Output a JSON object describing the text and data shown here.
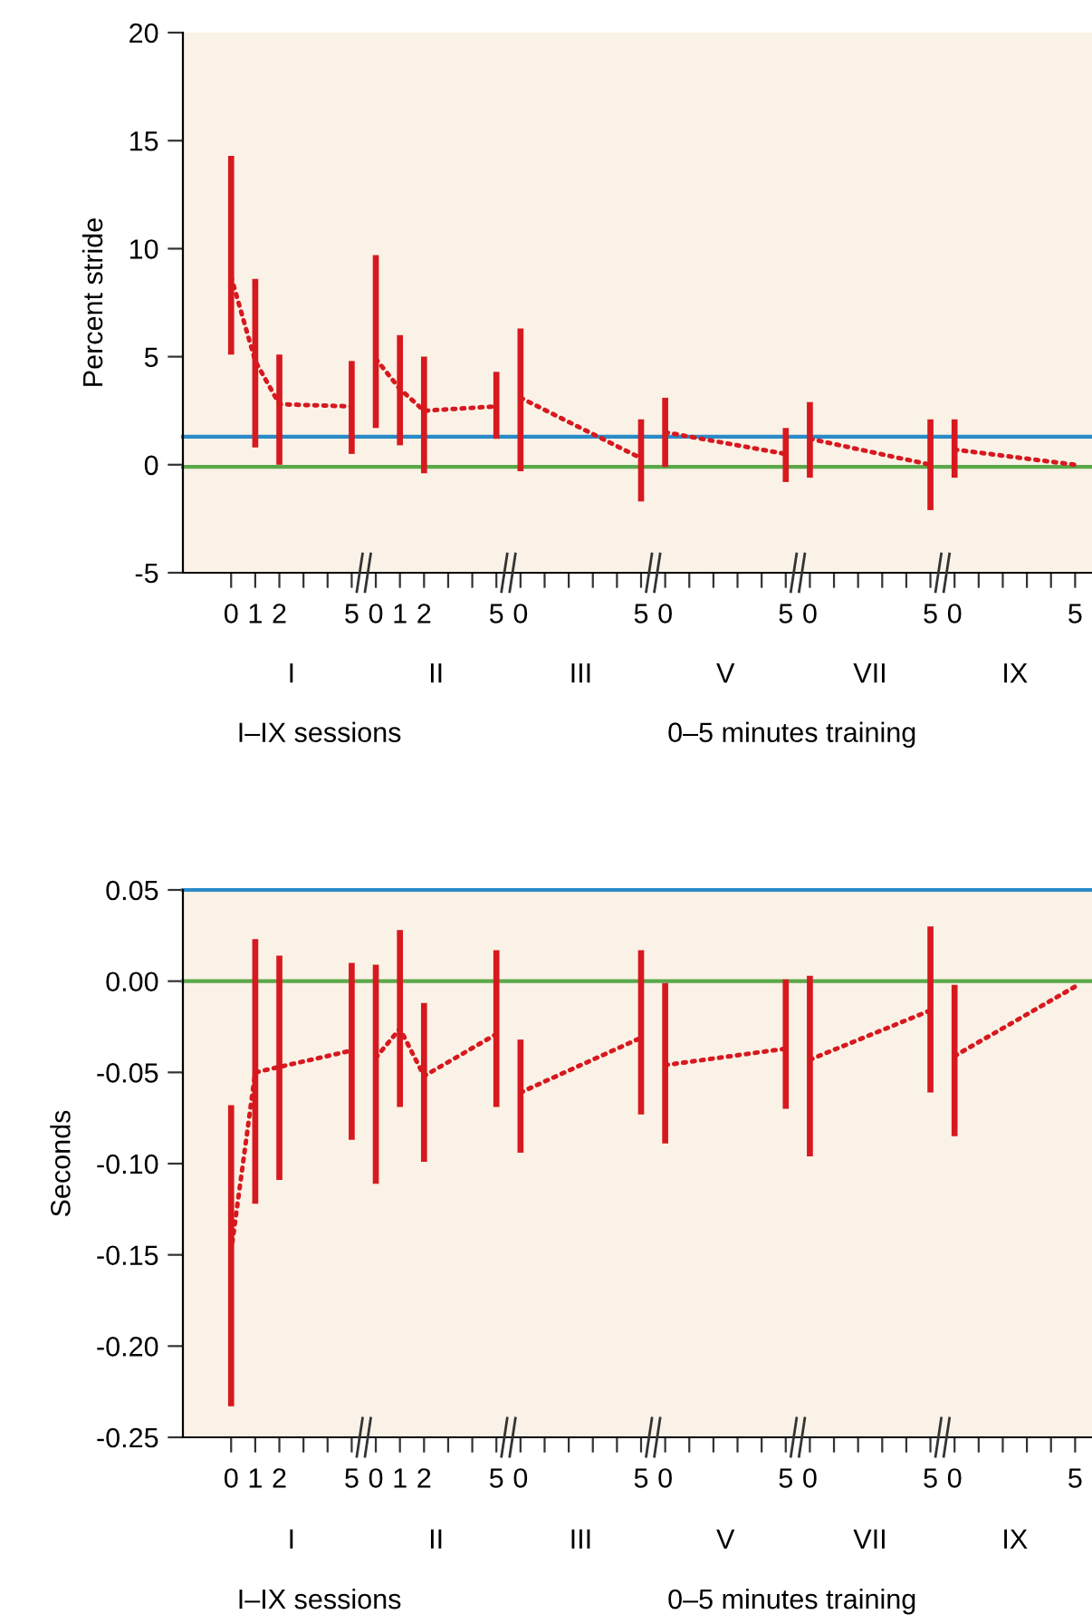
{
  "chart_data": [
    {
      "type": "line",
      "ylabel": "Percent stride",
      "xlabel": "I–IX sessions",
      "annotations": [
        "I",
        "II",
        "III",
        "V",
        "VII",
        "IX",
        "0–5 minutes training"
      ],
      "categories": [
        "0",
        "1",
        "2",
        null,
        null,
        "5",
        "0",
        "1",
        "2",
        null,
        null,
        "5",
        "0",
        null,
        null,
        null,
        null,
        "5",
        "0",
        null,
        null,
        null,
        null,
        "5",
        "0",
        null,
        null,
        null,
        null,
        "5",
        "0",
        null,
        null,
        null,
        null,
        "5"
      ],
      "ylim": [
        -5,
        20
      ],
      "yticks": [
        20,
        15,
        10,
        5,
        0,
        -5
      ],
      "line_style": "dotted",
      "marker": "none",
      "grid": false,
      "legend": false,
      "ref_lines": [
        {
          "axis": "y",
          "value": 1.3,
          "label": null,
          "color": "#2a8ac8"
        },
        {
          "axis": "y",
          "value": -0.1,
          "label": null,
          "color": "#5aa84a"
        }
      ],
      "series": [
        {
          "color": "#d7191f",
          "values": [
            8.7,
            4.8,
            2.8,
            null,
            null,
            2.7,
            null,
            null,
            null,
            null,
            null,
            null,
            null,
            null,
            null,
            null,
            null,
            null,
            null,
            null,
            null,
            null,
            null,
            null,
            null,
            null,
            null,
            null,
            null,
            null,
            null,
            null,
            null,
            null,
            null,
            null
          ],
          "errors": [
            [
              5.1,
              14.3
            ],
            [
              0.8,
              8.6
            ],
            [
              0.0,
              5.1
            ],
            null,
            null,
            [
              0.5,
              4.8
            ],
            null,
            null,
            null,
            null,
            null,
            null,
            null,
            null,
            null,
            null,
            null,
            null,
            null,
            null,
            null,
            null,
            null,
            null,
            null,
            null,
            null,
            null,
            null,
            null,
            null,
            null,
            null,
            null,
            null,
            null
          ]
        },
        {
          "color": "#d7191f",
          "values": [
            null,
            null,
            null,
            null,
            null,
            null,
            4.9,
            3.5,
            2.5,
            null,
            null,
            2.7,
            null,
            null,
            null,
            null,
            null,
            null,
            null,
            null,
            null,
            null,
            null,
            null,
            null,
            null,
            null,
            null,
            null,
            null,
            null,
            null,
            null,
            null,
            null,
            null
          ],
          "errors": [
            null,
            null,
            null,
            null,
            null,
            null,
            [
              1.7,
              9.7
            ],
            [
              0.9,
              6.0
            ],
            [
              -0.4,
              5.0
            ],
            null,
            null,
            [
              1.2,
              4.3
            ],
            null,
            null,
            null,
            null,
            null,
            null,
            null,
            null,
            null,
            null,
            null,
            null,
            null,
            null,
            null,
            null,
            null,
            null,
            null,
            null,
            null,
            null,
            null,
            null
          ]
        },
        {
          "color": "#d7191f",
          "values": [
            null,
            null,
            null,
            null,
            null,
            null,
            null,
            null,
            null,
            null,
            null,
            null,
            3.1,
            null,
            null,
            null,
            null,
            0.3,
            null,
            null,
            null,
            null,
            null,
            null,
            null,
            null,
            null,
            null,
            null,
            null,
            null,
            null,
            null,
            null,
            null,
            null
          ],
          "errors": [
            null,
            null,
            null,
            null,
            null,
            null,
            null,
            null,
            null,
            null,
            null,
            null,
            [
              -0.3,
              6.3
            ],
            null,
            null,
            null,
            null,
            [
              -1.7,
              2.1
            ],
            null,
            null,
            null,
            null,
            null,
            null,
            null,
            null,
            null,
            null,
            null,
            null,
            null,
            null,
            null,
            null,
            null,
            null
          ]
        },
        {
          "color": "#d7191f",
          "values": [
            null,
            null,
            null,
            null,
            null,
            null,
            null,
            null,
            null,
            null,
            null,
            null,
            null,
            null,
            null,
            null,
            null,
            null,
            1.5,
            null,
            null,
            null,
            null,
            0.5,
            null,
            null,
            null,
            null,
            null,
            null,
            null,
            null,
            null,
            null,
            null,
            null
          ],
          "errors": [
            null,
            null,
            null,
            null,
            null,
            null,
            null,
            null,
            null,
            null,
            null,
            null,
            null,
            null,
            null,
            null,
            null,
            null,
            [
              -0.1,
              3.1
            ],
            null,
            null,
            null,
            null,
            [
              -0.8,
              1.7
            ],
            null,
            null,
            null,
            null,
            null,
            null,
            null,
            null,
            null,
            null,
            null,
            null
          ]
        },
        {
          "color": "#d7191f",
          "values": [
            null,
            null,
            null,
            null,
            null,
            null,
            null,
            null,
            null,
            null,
            null,
            null,
            null,
            null,
            null,
            null,
            null,
            null,
            null,
            null,
            null,
            null,
            null,
            null,
            1.2,
            null,
            null,
            null,
            null,
            0.0,
            null,
            null,
            null,
            null,
            null,
            null
          ],
          "errors": [
            null,
            null,
            null,
            null,
            null,
            null,
            null,
            null,
            null,
            null,
            null,
            null,
            null,
            null,
            null,
            null,
            null,
            null,
            null,
            null,
            null,
            null,
            null,
            null,
            [
              -0.6,
              2.9
            ],
            null,
            null,
            null,
            null,
            [
              -2.1,
              2.1
            ],
            null,
            null,
            null,
            null,
            null,
            null
          ]
        },
        {
          "color": "#d7191f",
          "values": [
            null,
            null,
            null,
            null,
            null,
            null,
            null,
            null,
            null,
            null,
            null,
            null,
            null,
            null,
            null,
            null,
            null,
            null,
            null,
            null,
            null,
            null,
            null,
            null,
            null,
            null,
            null,
            null,
            null,
            null,
            0.7,
            null,
            null,
            null,
            null,
            0.0
          ],
          "errors": [
            null,
            null,
            null,
            null,
            null,
            null,
            null,
            null,
            null,
            null,
            null,
            null,
            null,
            null,
            null,
            null,
            null,
            null,
            null,
            null,
            null,
            null,
            null,
            null,
            null,
            null,
            null,
            null,
            null,
            null,
            [
              -0.6,
              2.1
            ],
            null,
            null,
            null,
            null,
            null
          ]
        }
      ]
    },
    {
      "type": "line",
      "ylabel": "Seconds",
      "xlabel": "I–IX sessions",
      "annotations": [
        "I",
        "II",
        "III",
        "V",
        "VII",
        "IX",
        "0–5 minutes training"
      ],
      "categories": [
        "0",
        "1",
        "2",
        null,
        null,
        "5",
        "0",
        "1",
        "2",
        null,
        null,
        "5",
        "0",
        null,
        null,
        null,
        null,
        "5",
        "0",
        null,
        null,
        null,
        null,
        "5",
        "0",
        null,
        null,
        null,
        null,
        "5",
        "0",
        null,
        null,
        null,
        null,
        "5"
      ],
      "ylim": [
        -0.25,
        0.05
      ],
      "yticks": [
        {
          "value": 0.05,
          "label": "0.05"
        },
        {
          "value": 0,
          "label": "0.00"
        },
        {
          "value": -0.05,
          "label": "-0.05"
        },
        {
          "value": -0.1,
          "label": "-0.10"
        },
        {
          "value": -0.15,
          "label": "-0.15"
        },
        {
          "value": -0.2,
          "label": "-0.20"
        },
        {
          "value": -0.25,
          "label": "-0.25"
        }
      ],
      "line_style": "dotted",
      "marker": "none",
      "grid": false,
      "legend": false,
      "ref_lines": [
        {
          "axis": "y",
          "value": 0.05,
          "label": null,
          "color": "#2a8ac8"
        },
        {
          "axis": "y",
          "value": 0.0,
          "label": null,
          "color": "#5aa84a"
        }
      ],
      "series": [
        {
          "color": "#d7191f",
          "values": [
            -0.148,
            -0.05,
            -0.047,
            null,
            null,
            -0.038,
            null,
            null,
            null,
            null,
            null,
            null,
            null,
            null,
            null,
            null,
            null,
            null,
            null,
            null,
            null,
            null,
            null,
            null,
            null,
            null,
            null,
            null,
            null,
            null,
            null,
            null,
            null,
            null,
            null,
            null
          ],
          "errors": [
            [
              -0.233,
              -0.068
            ],
            [
              -0.122,
              0.023
            ],
            [
              -0.109,
              0.014
            ],
            null,
            null,
            [
              -0.087,
              0.01
            ],
            null,
            null,
            null,
            null,
            null,
            null,
            null,
            null,
            null,
            null,
            null,
            null,
            null,
            null,
            null,
            null,
            null,
            null,
            null,
            null,
            null,
            null,
            null,
            null,
            null,
            null,
            null,
            null,
            null,
            null
          ]
        },
        {
          "color": "#d7191f",
          "values": [
            null,
            null,
            null,
            null,
            null,
            null,
            -0.042,
            -0.026,
            -0.052,
            null,
            null,
            -0.029,
            null,
            null,
            null,
            null,
            null,
            null,
            null,
            null,
            null,
            null,
            null,
            null,
            null,
            null,
            null,
            null,
            null,
            null,
            null,
            null,
            null,
            null,
            null,
            null
          ],
          "errors": [
            null,
            null,
            null,
            null,
            null,
            null,
            [
              -0.111,
              0.009
            ],
            [
              -0.069,
              0.028
            ],
            [
              -0.099,
              -0.012
            ],
            null,
            null,
            [
              -0.069,
              0.017
            ],
            null,
            null,
            null,
            null,
            null,
            null,
            null,
            null,
            null,
            null,
            null,
            null,
            null,
            null,
            null,
            null,
            null,
            null,
            null,
            null,
            null,
            null,
            null,
            null
          ]
        },
        {
          "color": "#d7191f",
          "values": [
            null,
            null,
            null,
            null,
            null,
            null,
            null,
            null,
            null,
            null,
            null,
            null,
            -0.061,
            null,
            null,
            null,
            null,
            -0.031,
            null,
            null,
            null,
            null,
            null,
            null,
            null,
            null,
            null,
            null,
            null,
            null,
            null,
            null,
            null,
            null,
            null,
            null
          ],
          "errors": [
            null,
            null,
            null,
            null,
            null,
            null,
            null,
            null,
            null,
            null,
            null,
            null,
            [
              -0.094,
              -0.032
            ],
            null,
            null,
            null,
            null,
            [
              -0.073,
              0.017
            ],
            null,
            null,
            null,
            null,
            null,
            null,
            null,
            null,
            null,
            null,
            null,
            null,
            null,
            null,
            null,
            null,
            null,
            null
          ]
        },
        {
          "color": "#d7191f",
          "values": [
            null,
            null,
            null,
            null,
            null,
            null,
            null,
            null,
            null,
            null,
            null,
            null,
            null,
            null,
            null,
            null,
            null,
            null,
            -0.046,
            null,
            null,
            null,
            null,
            -0.037,
            null,
            null,
            null,
            null,
            null,
            null,
            null,
            null,
            null,
            null,
            null,
            null
          ],
          "errors": [
            null,
            null,
            null,
            null,
            null,
            null,
            null,
            null,
            null,
            null,
            null,
            null,
            null,
            null,
            null,
            null,
            null,
            null,
            [
              -0.089,
              -0.001
            ],
            null,
            null,
            null,
            null,
            [
              -0.07,
              0.001
            ],
            null,
            null,
            null,
            null,
            null,
            null,
            null,
            null,
            null,
            null,
            null,
            null
          ]
        },
        {
          "color": "#d7191f",
          "values": [
            null,
            null,
            null,
            null,
            null,
            null,
            null,
            null,
            null,
            null,
            null,
            null,
            null,
            null,
            null,
            null,
            null,
            null,
            null,
            null,
            null,
            null,
            null,
            null,
            -0.043,
            null,
            null,
            null,
            null,
            -0.016,
            null,
            null,
            null,
            null,
            null,
            null
          ],
          "errors": [
            null,
            null,
            null,
            null,
            null,
            null,
            null,
            null,
            null,
            null,
            null,
            null,
            null,
            null,
            null,
            null,
            null,
            null,
            null,
            null,
            null,
            null,
            null,
            null,
            [
              -0.096,
              0.003
            ],
            null,
            null,
            null,
            null,
            [
              -0.061,
              0.03
            ],
            null,
            null,
            null,
            null,
            null,
            null
          ]
        },
        {
          "color": "#d7191f",
          "values": [
            null,
            null,
            null,
            null,
            null,
            null,
            null,
            null,
            null,
            null,
            null,
            null,
            null,
            null,
            null,
            null,
            null,
            null,
            null,
            null,
            null,
            null,
            null,
            null,
            null,
            null,
            null,
            null,
            null,
            null,
            -0.041,
            null,
            null,
            null,
            null,
            -0.003
          ],
          "errors": [
            null,
            null,
            null,
            null,
            null,
            null,
            null,
            null,
            null,
            null,
            null,
            null,
            null,
            null,
            null,
            null,
            null,
            null,
            null,
            null,
            null,
            null,
            null,
            null,
            null,
            null,
            null,
            null,
            null,
            null,
            [
              -0.085,
              -0.002
            ],
            null,
            null,
            null,
            null,
            null
          ]
        }
      ]
    }
  ]
}
